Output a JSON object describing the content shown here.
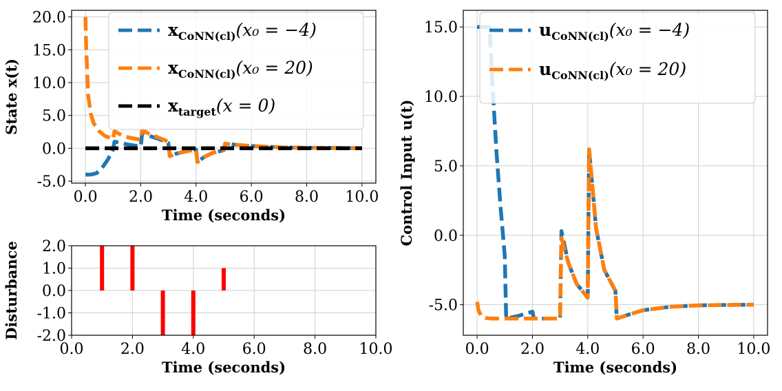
{
  "colors": {
    "blue": "#1f77b4",
    "orange": "#ff7f0e",
    "black": "#000000",
    "red": "#ff0000",
    "grid": "#cfcfcf"
  },
  "chart_data": [
    {
      "id": "state",
      "type": "line",
      "xlabel": "Time (seconds)",
      "ylabel": "State x(t)",
      "xlim": [
        -0.5,
        10.5
      ],
      "ylim": [
        -5.3,
        21
      ],
      "xticks": [
        0,
        2,
        4,
        6,
        8,
        10
      ],
      "xtick_labels": [
        "0.0",
        "2.0",
        "4.0",
        "6.0",
        "8.0",
        "10.0"
      ],
      "yticks": [
        -5,
        0,
        5,
        10,
        15,
        20
      ],
      "ytick_labels": [
        "-5.0",
        "0.0",
        "5.0",
        "10.0",
        "15.0",
        "20.0"
      ],
      "grid": true,
      "legend_position": "top-right",
      "series": [
        {
          "name_main": "x",
          "name_sub": "CoNN(cl)",
          "name_arg": "(x₀ = −4)",
          "color": "blue",
          "style": "dashed",
          "x": [
            0,
            0.2,
            0.4,
            0.6,
            0.8,
            1.0,
            1.05,
            1.2,
            1.5,
            1.8,
            2.0,
            2.05,
            2.3,
            2.6,
            3.0,
            3.05,
            3.3,
            3.6,
            4.0,
            4.05,
            4.3,
            4.6,
            5.0,
            5.05,
            5.5,
            6.0,
            6.5,
            7.0,
            8.0,
            9.0,
            10.0
          ],
          "y": [
            -4,
            -4,
            -3.8,
            -3.0,
            -1.8,
            -0.2,
            1.0,
            0.9,
            0.6,
            0.4,
            0.3,
            2.3,
            1.9,
            1.5,
            0.8,
            -1.2,
            -0.8,
            -0.5,
            -0.2,
            -2.1,
            -1.3,
            -0.7,
            -0.3,
            0.7,
            0.5,
            0.35,
            0.25,
            0.15,
            0.08,
            0.04,
            0.02
          ]
        },
        {
          "name_main": "x",
          "name_sub": "CoNN(cl)",
          "name_arg": "(x₀ = 20)",
          "color": "orange",
          "style": "dashed",
          "x": [
            0,
            0.03,
            0.1,
            0.2,
            0.3,
            0.5,
            0.7,
            1.0,
            1.05,
            1.3,
            1.6,
            2.0,
            2.05,
            2.3,
            2.6,
            3.0,
            3.05,
            3.3,
            3.6,
            4.0,
            4.05,
            4.3,
            4.6,
            5.0,
            5.05,
            5.5,
            6.0,
            6.5,
            7.0,
            8.0,
            9.0,
            10.0
          ],
          "y": [
            20,
            15,
            8,
            5.2,
            3.8,
            2.6,
            1.9,
            1.4,
            2.6,
            2.0,
            1.6,
            1.3,
            2.8,
            2.2,
            1.7,
            1.0,
            -1.2,
            -0.8,
            -0.5,
            -0.2,
            -2.1,
            -1.3,
            -0.7,
            -0.3,
            0.7,
            0.5,
            0.35,
            0.25,
            0.15,
            0.08,
            0.04,
            0.02
          ]
        },
        {
          "name_main": "x",
          "name_sub": "target",
          "name_arg": "(x = 0)",
          "color": "black",
          "style": "dashed",
          "x": [
            0,
            10
          ],
          "y": [
            0,
            0
          ]
        }
      ]
    },
    {
      "id": "disturbance",
      "type": "bar",
      "xlabel": "Time (seconds)",
      "ylabel": "Disturbance",
      "xlim": [
        0,
        10
      ],
      "ylim": [
        -2,
        2
      ],
      "xticks": [
        0,
        2,
        4,
        6,
        8,
        10
      ],
      "xtick_labels": [
        "0.0",
        "2.0",
        "4.0",
        "6.0",
        "8.0",
        "10.0"
      ],
      "yticks": [
        -2,
        -1,
        0,
        1,
        2
      ],
      "ytick_labels": [
        "-2.0",
        "-1.0",
        "0.0",
        "1.0",
        "2.0"
      ],
      "grid": true,
      "color": "red",
      "x": [
        1,
        2,
        3,
        4,
        5
      ],
      "values": [
        2.0,
        2.0,
        -2.0,
        -2.0,
        1.0
      ]
    },
    {
      "id": "control",
      "type": "line",
      "xlabel": "Time (seconds)",
      "ylabel": "Control Input u(t)",
      "xlim": [
        -0.5,
        10.5
      ],
      "ylim": [
        -7.2,
        16.2
      ],
      "xticks": [
        0,
        2,
        4,
        6,
        8,
        10
      ],
      "xtick_labels": [
        "0.0",
        "2.0",
        "4.0",
        "6.0",
        "8.0",
        "10.0"
      ],
      "yticks": [
        -5,
        0,
        5,
        10,
        15
      ],
      "ytick_labels": [
        "-5.0",
        "0.0",
        "5.0",
        "10.0",
        "15.0"
      ],
      "grid": true,
      "legend_position": "top-right",
      "series": [
        {
          "name_main": "u",
          "name_sub": "CoNN(cl)",
          "name_arg": "(x₀ = −4)",
          "color": "blue",
          "style": "dashed",
          "x": [
            0,
            0.1,
            0.3,
            0.45,
            0.55,
            0.7,
            0.85,
            1.0,
            1.05,
            1.5,
            2.0,
            2.05,
            2.5,
            3.0,
            3.05,
            3.3,
            3.6,
            4.0,
            4.05,
            4.3,
            4.6,
            5.0,
            5.05,
            5.5,
            6.0,
            7.0,
            8.0,
            9.0,
            10.0
          ],
          "y": [
            15,
            15,
            15,
            15,
            11,
            6,
            2,
            -1.5,
            -6,
            -5.8,
            -5.5,
            -6,
            -6,
            -6,
            0.3,
            -2,
            -3.5,
            -4.5,
            6.2,
            0.5,
            -2.5,
            -4.0,
            -6,
            -5.7,
            -5.4,
            -5.15,
            -5.05,
            -5.02,
            -5.0
          ]
        },
        {
          "name_main": "u",
          "name_sub": "CoNN(cl)",
          "name_arg": "(x₀ = 20)",
          "color": "orange",
          "style": "dashed",
          "x": [
            0,
            0.05,
            0.15,
            0.3,
            0.5,
            0.8,
            1.0,
            1.5,
            2.0,
            2.5,
            3.0,
            3.05,
            3.3,
            3.6,
            4.0,
            4.05,
            4.3,
            4.6,
            5.0,
            5.05,
            5.5,
            6.0,
            7.0,
            8.0,
            9.0,
            10.0
          ],
          "y": [
            -4.8,
            -5.4,
            -5.8,
            -5.95,
            -6.0,
            -6.0,
            -6.0,
            -6.0,
            -6.0,
            -6.0,
            -6.0,
            -0.2,
            -2,
            -3.5,
            -4.5,
            6.2,
            0.5,
            -2.5,
            -4.0,
            -6,
            -5.7,
            -5.4,
            -5.15,
            -5.05,
            -5.02,
            -5.0
          ]
        }
      ]
    }
  ]
}
